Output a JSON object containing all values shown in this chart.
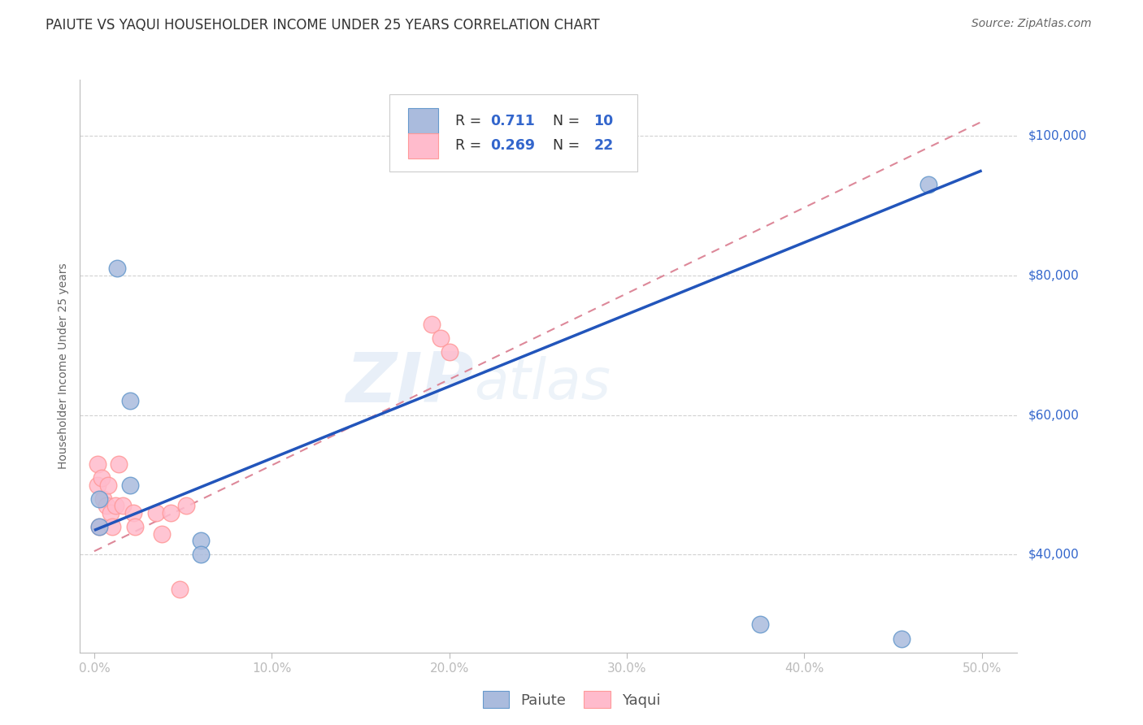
{
  "title": "PAIUTE VS YAQUI HOUSEHOLDER INCOME UNDER 25 YEARS CORRELATION CHART",
  "source": "Source: ZipAtlas.com",
  "xlabel_ticks": [
    "0.0%",
    "10.0%",
    "20.0%",
    "30.0%",
    "40.0%",
    "50.0%"
  ],
  "xlabel_tick_vals": [
    0.0,
    0.1,
    0.2,
    0.3,
    0.4,
    0.5
  ],
  "ylabel": "Householder Income Under 25 years",
  "ylabel_ticks": [
    "$40,000",
    "$60,000",
    "$80,000",
    "$100,000"
  ],
  "ylabel_tick_vals": [
    40000,
    60000,
    80000,
    100000
  ],
  "xlim": [
    -0.008,
    0.52
  ],
  "ylim": [
    26000,
    108000
  ],
  "watermark_left": "ZIP",
  "watermark_right": "atlas",
  "paiute_color": "#AABBDD",
  "paiute_edge_color": "#6699CC",
  "yaqui_color": "#FFBBCC",
  "yaqui_edge_color": "#FF9999",
  "paiute_line_color": "#2255BB",
  "yaqui_line_color": "#DD8899",
  "paiute_points_x": [
    0.003,
    0.003,
    0.013,
    0.02,
    0.02,
    0.06,
    0.06,
    0.375,
    0.455,
    0.47
  ],
  "paiute_points_y": [
    48000,
    44000,
    81000,
    62000,
    50000,
    42000,
    40000,
    30000,
    28000,
    93000
  ],
  "yaqui_points_x": [
    0.002,
    0.002,
    0.003,
    0.004,
    0.005,
    0.007,
    0.008,
    0.009,
    0.01,
    0.012,
    0.014,
    0.016,
    0.022,
    0.023,
    0.035,
    0.038,
    0.043,
    0.048,
    0.052,
    0.19,
    0.195,
    0.2
  ],
  "yaqui_points_y": [
    53000,
    50000,
    44000,
    51000,
    48000,
    47000,
    50000,
    46000,
    44000,
    47000,
    53000,
    47000,
    46000,
    44000,
    46000,
    43000,
    46000,
    35000,
    47000,
    73000,
    71000,
    69000
  ],
  "paiute_trend_x": [
    0.0,
    0.5
  ],
  "paiute_trend_y": [
    43500,
    95000
  ],
  "yaqui_trend_x": [
    0.0,
    0.5
  ],
  "yaqui_trend_y": [
    40500,
    102000
  ],
  "grid_color": "#CCCCCC",
  "background_color": "#FFFFFF",
  "paiute_label": "Paiute",
  "yaqui_label": "Yaqui",
  "legend_R1": "R =  0.711",
  "legend_N1": "N = 10",
  "legend_R2": "R = 0.269",
  "legend_N2": "N = 22",
  "legend_color_blue": "#2255BB",
  "legend_color_RN": "#3366CC"
}
